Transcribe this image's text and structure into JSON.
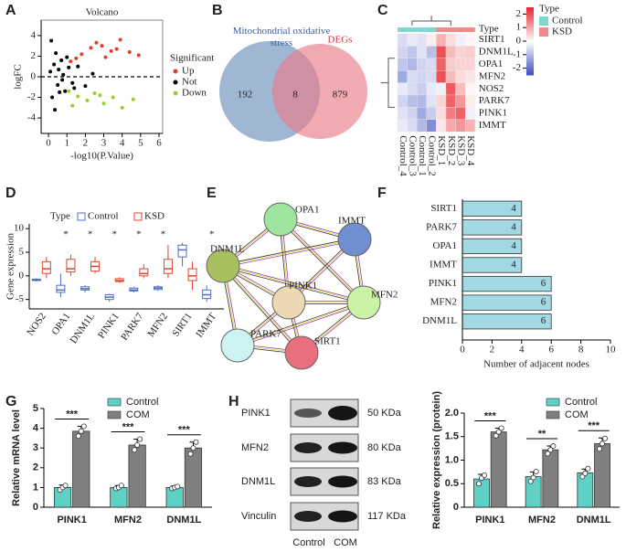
{
  "chart_data": [
    {
      "panel_label": "A",
      "type": "scatter",
      "title": "Volcano",
      "xlabel": "-log10(P.Value)",
      "ylabel": "logFC",
      "xlim": [
        -0.4,
        6.2
      ],
      "xticks": [
        0,
        1,
        2,
        3,
        4,
        5,
        6
      ],
      "ylim": [
        -5.5,
        5.5
      ],
      "yticks": [
        -4,
        -2,
        0,
        2,
        4
      ],
      "reference_line": 0,
      "legend_title": "Significant",
      "series": [
        {
          "name": "Up",
          "color": "#d9422c",
          "x": [
            1.2,
            1.8,
            2.3,
            2.9,
            3.4,
            3.9,
            4.4,
            4.9,
            1.5,
            2.6,
            3.1,
            3.7
          ],
          "y": [
            1.5,
            2.2,
            2.8,
            3.0,
            2.5,
            3.6,
            2.4,
            2.1,
            1.8,
            3.3,
            1.9,
            2.7
          ]
        },
        {
          "name": "Not",
          "color": "#000000",
          "x": [
            0.1,
            0.3,
            0.5,
            0.7,
            0.9,
            1.1,
            1.3,
            1.6,
            2.0,
            2.4,
            0.2,
            0.4,
            0.6,
            0.8,
            1.0,
            1.4,
            0.15,
            0.35,
            0.55,
            0.75
          ],
          "y": [
            0.5,
            1.2,
            -0.8,
            1.6,
            -1.4,
            0.9,
            -0.6,
            1.0,
            -0.9,
            0.3,
            -2.0,
            2.3,
            -1.5,
            0.2,
            1.9,
            -1.1,
            3.5,
            -3.2,
            0.7,
            -0.3
          ]
        },
        {
          "name": "Down",
          "color": "#9acd32",
          "x": [
            1.1,
            1.6,
            2.1,
            2.5,
            3.0,
            3.5,
            4.0,
            4.6,
            1.3,
            2.8
          ],
          "y": [
            -1.4,
            -1.9,
            -2.3,
            -1.6,
            -2.6,
            -2.0,
            -3.0,
            -2.2,
            -2.8,
            -1.8
          ]
        }
      ]
    },
    {
      "panel_label": "B",
      "type": "venn",
      "sets": [
        {
          "name": "Mitochondrial oxidative stress",
          "color": "#7f9fc4"
        },
        {
          "name": "DEGs",
          "color": "#ea7b88"
        }
      ],
      "counts": [
        192,
        8,
        879
      ]
    },
    {
      "panel_label": "C",
      "type": "heatmap",
      "rows": [
        "SIRT1",
        "DNM1L",
        "OPA1",
        "MFN2",
        "NOS2",
        "PARK7",
        "PINK1",
        "IMMT"
      ],
      "columns": [
        "Control_4",
        "Control_3",
        "Control_1",
        "Control_2",
        "KSD_1",
        "KSD_2",
        "KSD_3",
        "KSD_4"
      ],
      "column_groups": [
        "Control",
        "Control",
        "Control",
        "Control",
        "KSD",
        "KSD",
        "KSD",
        "KSD"
      ],
      "annotation_label": "Type",
      "legend_title": "Type",
      "groups": [
        {
          "name": "Control",
          "color": "#7dd8cf"
        },
        {
          "name": "KSD",
          "color": "#f08a8a"
        }
      ],
      "values": [
        [
          -0.5,
          -0.3,
          -0.4,
          0.2,
          0.9,
          0.4,
          -0.2,
          0.1
        ],
        [
          -0.6,
          -0.8,
          -0.4,
          -0.9,
          2.0,
          0.8,
          0.5,
          0.6
        ],
        [
          -0.8,
          -1.0,
          -0.6,
          -0.5,
          1.8,
          0.6,
          0.5,
          0.5
        ],
        [
          -1.2,
          -0.5,
          -0.6,
          -0.5,
          2.0,
          0.8,
          0.4,
          0.3
        ],
        [
          -0.3,
          -0.5,
          -0.7,
          -0.3,
          -0.2,
          1.9,
          0.8,
          0.1
        ],
        [
          -0.6,
          -0.9,
          -1.0,
          -0.4,
          0.5,
          1.8,
          1.2,
          0.2
        ],
        [
          -0.4,
          -0.6,
          -1.2,
          -0.7,
          0.4,
          1.5,
          1.8,
          -0.2
        ],
        [
          -0.3,
          -0.5,
          -1.0,
          -1.6,
          0.3,
          1.0,
          1.2,
          0.9
        ]
      ],
      "colorscale": [
        "#3b4cc0",
        "#ffffff",
        "#e8262c"
      ],
      "clim": [
        -2.5,
        2.5
      ],
      "cticks": [
        2,
        1,
        0,
        -1,
        -2
      ]
    },
    {
      "panel_label": "D",
      "type": "box",
      "ylabel": "Gene expression",
      "legend_title": "Type",
      "categories": [
        "NOS2",
        "OPA1",
        "DNM1L",
        "PINK1",
        "PARK7",
        "MFN2",
        "SIRT1",
        "IMMT"
      ],
      "ylim": [
        -7,
        11
      ],
      "yticks": [
        -5,
        0,
        5,
        10
      ],
      "significance": [
        null,
        "*",
        "*",
        "*",
        "*",
        "*",
        null,
        "*"
      ],
      "series": [
        {
          "name": "Control",
          "color": "#4f6fc8",
          "boxes": [
            [
              -1.2,
              -1.0,
              -0.9,
              -0.7,
              -0.5
            ],
            [
              -4.5,
              -3.5,
              -3.0,
              -2.0,
              0.5
            ],
            [
              -3.5,
              -3.0,
              -2.7,
              -2.3,
              -2.0
            ],
            [
              -5.5,
              -5.0,
              -4.5,
              -4.0,
              -3.8
            ],
            [
              -3.5,
              -3.2,
              -3.0,
              -2.6,
              -2.3
            ],
            [
              -3.2,
              -2.9,
              -2.6,
              -2.3,
              -2.0
            ],
            [
              2.0,
              4.0,
              5.5,
              6.5,
              7.0
            ],
            [
              -5.5,
              -4.8,
              -4.0,
              -3.0,
              -2.0
            ]
          ]
        },
        {
          "name": "KSD",
          "color": "#e0442c",
          "boxes": [
            [
              -0.5,
              0.5,
              1.5,
              3.0,
              4.0
            ],
            [
              0.0,
              0.8,
              1.5,
              3.5,
              4.5
            ],
            [
              0.5,
              1.0,
              2.0,
              3.0,
              4.0
            ],
            [
              -1.5,
              -1.2,
              -1.0,
              -0.6,
              -0.3
            ],
            [
              -0.5,
              0.0,
              0.5,
              1.5,
              2.5
            ],
            [
              -0.5,
              0.5,
              1.5,
              3.5,
              6.5
            ],
            [
              -3.0,
              -1.0,
              0.0,
              1.5,
              3.0
            ],
            [
              -1.0,
              -0.3,
              0.0,
              0.5,
              1.0
            ]
          ]
        }
      ]
    },
    {
      "panel_label": "E",
      "type": "network",
      "nodes": [
        {
          "label": "OPA1",
          "color": "#9ee6a0"
        },
        {
          "label": "IMMT",
          "color": "#6f8fd0"
        },
        {
          "label": "DNM1L",
          "color": "#a8c060"
        },
        {
          "label": "PINK1",
          "color": "#ecd9b4"
        },
        {
          "label": "MFN2",
          "color": "#ccf2a6"
        },
        {
          "label": "PARK7",
          "color": "#cdf2f2"
        },
        {
          "label": "SIRT1",
          "color": "#e8707e"
        }
      ],
      "edges": [
        [
          "OPA1",
          "IMMT"
        ],
        [
          "OPA1",
          "DNM1L"
        ],
        [
          "OPA1",
          "PINK1"
        ],
        [
          "OPA1",
          "MFN2"
        ],
        [
          "IMMT",
          "DNM1L"
        ],
        [
          "IMMT",
          "PINK1"
        ],
        [
          "IMMT",
          "MFN2"
        ],
        [
          "DNM1L",
          "PINK1"
        ],
        [
          "DNM1L",
          "MFN2"
        ],
        [
          "DNM1L",
          "PARK7"
        ],
        [
          "DNM1L",
          "SIRT1"
        ],
        [
          "PINK1",
          "MFN2"
        ],
        [
          "PINK1",
          "PARK7"
        ],
        [
          "PINK1",
          "SIRT1"
        ],
        [
          "MFN2",
          "PARK7"
        ],
        [
          "MFN2",
          "SIRT1"
        ],
        [
          "PARK7",
          "SIRT1"
        ]
      ]
    },
    {
      "panel_label": "F",
      "type": "barh",
      "categories": [
        "SIRT1",
        "PARK7",
        "OPA1",
        "IMMT",
        "PINK1",
        "MFN2",
        "DNM1L"
      ],
      "values": [
        4,
        4,
        4,
        4,
        6,
        6,
        6
      ],
      "color": "#a3d9e3",
      "xlim": [
        0,
        10
      ],
      "xticks": [
        0,
        2,
        4,
        6,
        8,
        10
      ],
      "xlabel": "Number of adjacent nodes"
    },
    {
      "panel_label": "G",
      "type": "grouped_bar",
      "ylabel": "Relative mRNA level",
      "categories": [
        "PINK1",
        "MFN2",
        "DNM1L"
      ],
      "ylim": [
        0,
        5
      ],
      "yticks": [
        0,
        1,
        2,
        3,
        4,
        5
      ],
      "significance": [
        "***",
        "***",
        "***"
      ],
      "series": [
        {
          "name": "Control",
          "color": "#5ed0c4",
          "values": [
            1,
            1,
            1
          ],
          "errors": [
            0.12,
            0.1,
            0.08
          ],
          "points": [
            [
              0.88,
              1.0,
              1.1
            ],
            [
              0.95,
              1.0,
              1.1
            ],
            [
              0.95,
              1.0,
              1.05
            ]
          ]
        },
        {
          "name": "COM",
          "color": "#7f7f7f",
          "values": [
            3.85,
            3.15,
            3.0
          ],
          "errors": [
            0.25,
            0.3,
            0.3
          ],
          "points": [
            [
              3.6,
              3.85,
              4.1
            ],
            [
              2.9,
              3.15,
              3.45
            ],
            [
              2.7,
              3.0,
              3.3
            ]
          ]
        }
      ]
    },
    {
      "panel_label": "H",
      "type": "blot",
      "rows": [
        {
          "label": "PINK1",
          "size": "50 KDa"
        },
        {
          "label": "MFN2",
          "size": "80 KDa"
        },
        {
          "label": "DNM1L",
          "size": "83 KDa"
        },
        {
          "label": "Vinculin",
          "size": "117 KDa"
        }
      ],
      "columns": [
        "Control",
        "COM"
      ]
    },
    {
      "type": "grouped_bar",
      "ylabel": "Relative expression (protein)",
      "categories": [
        "PINK1",
        "MFN2",
        "DNM1L"
      ],
      "ylim": [
        0,
        2
      ],
      "yticks": [
        0,
        0.5,
        {
          "value": 1,
          "label": "1.0"
        },
        1.5,
        {
          "value": 2,
          "label": "2.0"
        }
      ],
      "significance": [
        "***",
        "**",
        "***"
      ],
      "series": [
        {
          "name": "Control",
          "color": "#5ed0c4",
          "values": [
            0.6,
            0.65,
            0.73
          ],
          "errors": [
            0.1,
            0.1,
            0.08
          ],
          "points": [
            [
              0.5,
              0.62,
              0.68
            ],
            [
              0.55,
              0.63,
              0.76
            ],
            [
              0.65,
              0.72,
              0.82
            ]
          ]
        },
        {
          "name": "COM",
          "color": "#7f7f7f",
          "values": [
            1.6,
            1.22,
            1.35
          ],
          "errors": [
            0.08,
            0.08,
            0.12
          ],
          "points": [
            [
              1.52,
              1.6,
              1.68
            ],
            [
              1.14,
              1.22,
              1.3
            ],
            [
              1.24,
              1.35,
              1.46
            ]
          ]
        }
      ]
    }
  ]
}
